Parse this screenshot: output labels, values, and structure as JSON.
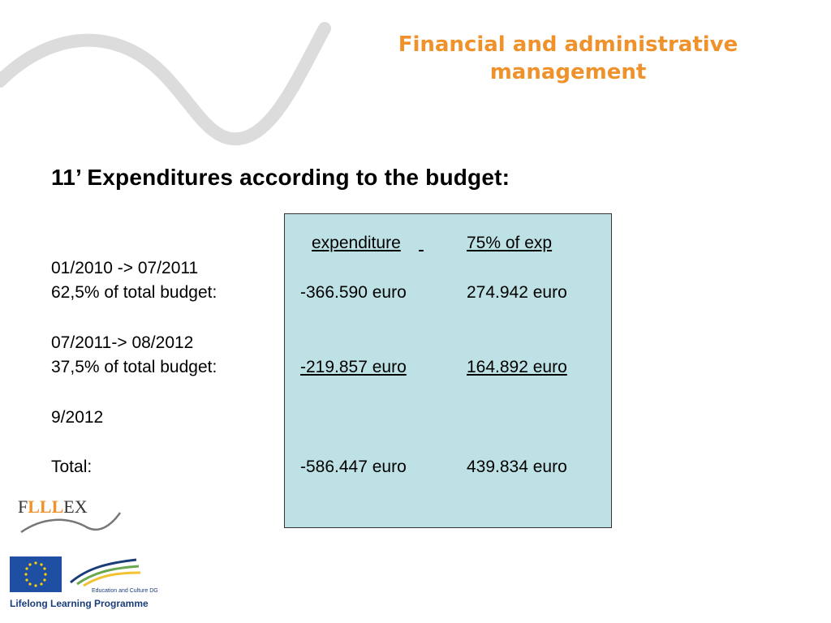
{
  "header": {
    "title_line1": "Financial and administrative",
    "title_line2": "management"
  },
  "heading": "11’ Expenditures according to the budget:",
  "table": {
    "col_expenditure": "expenditure",
    "col_pct": "75% of exp",
    "rows": [
      {
        "period": "01/2010 -> 07/2011",
        "label": "62,5% of total budget:",
        "expenditure": "-366.590 euro",
        "pct75": "274.942 euro"
      },
      {
        "period": "07/2011-> 08/2012",
        "label": "37,5% of total budget:",
        "expenditure": "-219.857 euro",
        "pct75": "164.892 euro"
      },
      {
        "period": "9/2012"
      },
      {
        "label": "Total:",
        "expenditure": "-586.447 euro",
        "pct75": "439.834 euro"
      }
    ]
  },
  "footer": {
    "brand_prefix": "F",
    "brand_lll": "LLL",
    "brand_suffix": "EX",
    "edu_text": "Education and Culture DG",
    "program": "Lifelong Learning Programme"
  },
  "colors": {
    "accent": "#f0922c",
    "box_bg": "#bde1e4",
    "swoosh": "#d9d9d9"
  },
  "icons": [
    "swoosh-decoration",
    "flllex-logo",
    "eu-flag-icon",
    "education-culture-logo"
  ]
}
